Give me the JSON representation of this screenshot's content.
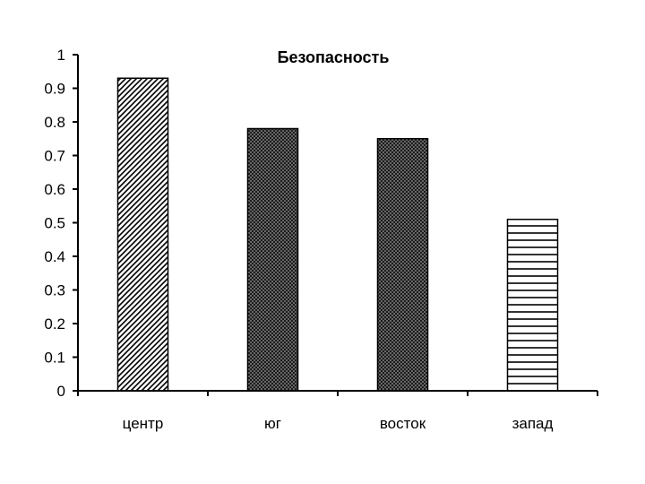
{
  "chart_data": {
    "type": "bar",
    "title": "Безопасность",
    "categories": [
      "центр",
      "юг",
      "восток",
      "запад"
    ],
    "values": [
      0.93,
      0.78,
      0.75,
      0.51
    ],
    "xlabel": "",
    "ylabel": "",
    "ylim": [
      0,
      1
    ],
    "yticks": [
      "0",
      "0.1",
      "0.2",
      "0.3",
      "0.4",
      "0.5",
      "0.6",
      "0.7",
      "0.8",
      "0.9",
      "1"
    ],
    "grid": false,
    "legend": "none",
    "bar_fills": [
      "diagonal-hatch",
      "dense-crosshatch",
      "dense-crosshatch",
      "horizontal-lines"
    ],
    "colors": {
      "ink": "#000000",
      "background": "#ffffff"
    }
  }
}
